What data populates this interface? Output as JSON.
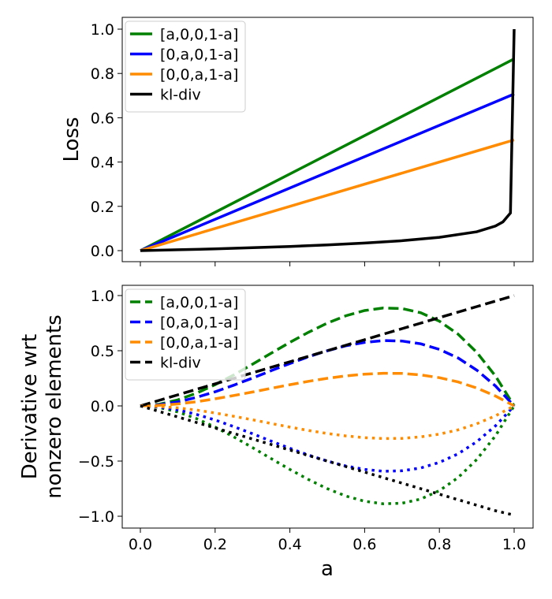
{
  "chart_data": [
    {
      "type": "line",
      "xlabel": "",
      "ylabel": "Loss",
      "xlim": [
        -0.05,
        1.05
      ],
      "ylim": [
        -0.05,
        1.05
      ],
      "xticks": [],
      "yticks": [
        "0.0",
        "0.2",
        "0.4",
        "0.6",
        "0.8",
        "1.0"
      ],
      "grid": false,
      "legend": "top-left",
      "series": [
        {
          "name": "[a,0,0,1-a]",
          "color": "#008000",
          "style": "solid",
          "x": [
            0,
            1
          ],
          "y": [
            0,
            0.866
          ]
        },
        {
          "name": "[0,a,0,1-a]",
          "color": "#0000ff",
          "style": "solid",
          "x": [
            0,
            1
          ],
          "y": [
            0,
            0.707
          ]
        },
        {
          "name": "[0,0,a,1-a]",
          "color": "#ff8c00",
          "style": "solid",
          "x": [
            0,
            1
          ],
          "y": [
            0,
            0.5
          ]
        },
        {
          "name": "kl-div",
          "color": "#000000",
          "style": "solid",
          "x": [
            0,
            0.1,
            0.2,
            0.3,
            0.4,
            0.5,
            0.6,
            0.7,
            0.8,
            0.9,
            0.95,
            0.97,
            0.99,
            1.0
          ],
          "y": [
            0,
            0.004,
            0.008,
            0.013,
            0.019,
            0.026,
            0.034,
            0.045,
            0.06,
            0.085,
            0.111,
            0.13,
            0.17,
            1.0
          ]
        }
      ]
    },
    {
      "type": "line",
      "xlabel": "a",
      "ylabel": [
        "Derivative wrt",
        "nonzero elements"
      ],
      "xlim": [
        -0.05,
        1.05
      ],
      "ylim": [
        -1.1,
        1.1
      ],
      "xticks": [
        "0.0",
        "0.2",
        "0.4",
        "0.6",
        "0.8",
        "1.0"
      ],
      "yticks": [
        "−1.0",
        "−0.5",
        "0.0",
        "0.5",
        "1.0"
      ],
      "grid": false,
      "legend": "top-left",
      "series": [
        {
          "name": "[a,0,0,1-a]",
          "color": "#008000",
          "style": "dashed",
          "y": [
            0,
            0.014,
            0.054,
            0.115,
            0.192,
            0.281,
            0.378,
            0.478,
            0.576,
            0.668,
            0.75,
            0.817,
            0.864,
            0.887,
            0.882,
            0.844,
            0.768,
            0.65,
            0.486,
            0.271,
            0
          ]
        },
        {
          "name": "[0,a,0,1-a]",
          "color": "#0000ff",
          "style": "dashed",
          "y": [
            0,
            0.01,
            0.036,
            0.077,
            0.128,
            0.188,
            0.252,
            0.319,
            0.384,
            0.446,
            0.5,
            0.545,
            0.576,
            0.592,
            0.588,
            0.563,
            0.512,
            0.434,
            0.324,
            0.181,
            0
          ]
        },
        {
          "name": "[0,0,a,1-a]",
          "color": "#ff8c00",
          "style": "dashed",
          "y": [
            0,
            0.005,
            0.018,
            0.038,
            0.064,
            0.094,
            0.126,
            0.159,
            0.192,
            0.223,
            0.25,
            0.272,
            0.288,
            0.296,
            0.294,
            0.281,
            0.256,
            0.217,
            0.162,
            0.09,
            0
          ]
        },
        {
          "name": "kl-div",
          "color": "#000000",
          "style": "dashed",
          "y": [
            0,
            0.05,
            0.1,
            0.15,
            0.2,
            0.25,
            0.3,
            0.35,
            0.4,
            0.45,
            0.5,
            0.55,
            0.6,
            0.65,
            0.7,
            0.75,
            0.8,
            0.85,
            0.9,
            0.95,
            1.0
          ]
        },
        {
          "color": "#008000",
          "style": "dotted",
          "y": [
            0,
            -0.014,
            -0.054,
            -0.115,
            -0.192,
            -0.281,
            -0.378,
            -0.478,
            -0.576,
            -0.668,
            -0.75,
            -0.817,
            -0.864,
            -0.887,
            -0.882,
            -0.844,
            -0.768,
            -0.65,
            -0.486,
            -0.271,
            0
          ]
        },
        {
          "color": "#0000ff",
          "style": "dotted",
          "y": [
            0,
            -0.01,
            -0.036,
            -0.077,
            -0.128,
            -0.188,
            -0.252,
            -0.319,
            -0.384,
            -0.446,
            -0.5,
            -0.545,
            -0.576,
            -0.592,
            -0.588,
            -0.563,
            -0.512,
            -0.434,
            -0.324,
            -0.181,
            0
          ]
        },
        {
          "color": "#ff8c00",
          "style": "dotted",
          "y": [
            0,
            -0.005,
            -0.018,
            -0.038,
            -0.064,
            -0.094,
            -0.126,
            -0.159,
            -0.192,
            -0.223,
            -0.25,
            -0.272,
            -0.288,
            -0.296,
            -0.294,
            -0.281,
            -0.256,
            -0.217,
            -0.162,
            -0.09,
            0
          ]
        },
        {
          "color": "#000000",
          "style": "dotted",
          "y": [
            0,
            -0.05,
            -0.1,
            -0.15,
            -0.2,
            -0.25,
            -0.3,
            -0.35,
            -0.4,
            -0.45,
            -0.5,
            -0.55,
            -0.6,
            -0.65,
            -0.7,
            -0.75,
            -0.8,
            -0.85,
            -0.9,
            -0.95,
            -0.99
          ]
        }
      ],
      "x": [
        0,
        0.05,
        0.1,
        0.15,
        0.2,
        0.25,
        0.3,
        0.35,
        0.4,
        0.45,
        0.5,
        0.55,
        0.6,
        0.65,
        0.7,
        0.75,
        0.8,
        0.85,
        0.9,
        0.95,
        1.0
      ]
    }
  ]
}
